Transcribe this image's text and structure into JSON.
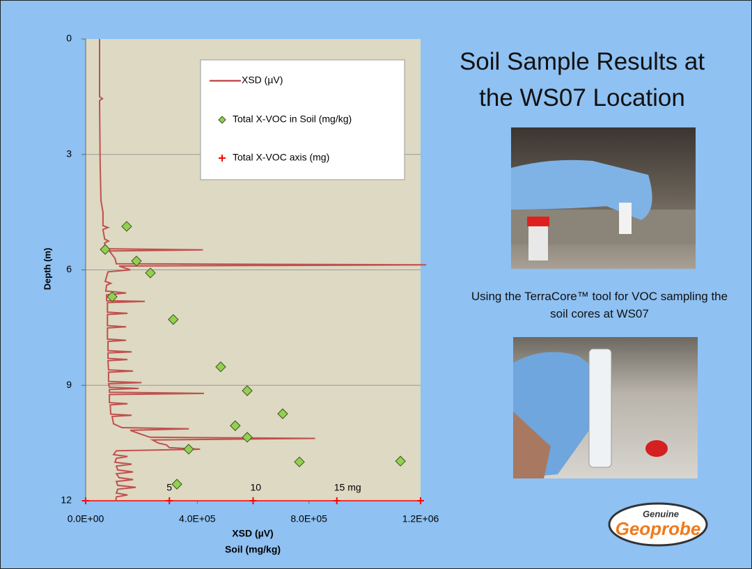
{
  "slide": {
    "title": "Soil Sample Results at the WS07 Location",
    "caption": "Using the TerraCore™ tool for VOC sampling the soil cores at WS07",
    "logo": {
      "top": "Genuine",
      "main": "Geoprobe"
    }
  },
  "chart_data": {
    "type": "line",
    "xlabel": "XSD (µV)",
    "xlabel2": "Soil (mg/kg)",
    "ylabel": "Depth (m)",
    "xlim": [
      0,
      1200000
    ],
    "xticks": [
      {
        "value": 0,
        "label": "0.0E+00"
      },
      {
        "value": 400000,
        "label": "4.0E+05"
      },
      {
        "value": 800000,
        "label": "8.0E+05"
      },
      {
        "value": 1200000,
        "label": "1.2E+06"
      }
    ],
    "ylim": [
      0,
      12
    ],
    "yticks": [
      0,
      3,
      6,
      9,
      12
    ],
    "y_inverted": true,
    "grid": true,
    "x2": {
      "name": "Total X-VOC axis (mg)",
      "color": "#ff0000",
      "lim": [
        0,
        20
      ],
      "ticks": [
        5,
        10,
        {
          "value": 15,
          "label": "15 mg"
        }
      ]
    },
    "series": [
      {
        "name": "XSD (µV)",
        "type": "line",
        "color": "#c0504d",
        "x": [
          50000,
          50000,
          60000,
          50000,
          52000,
          55000,
          62000,
          62000,
          80000,
          62000,
          68000,
          82000,
          68000,
          70000,
          420000,
          85000,
          105000,
          110000,
          1220000,
          120000,
          160000,
          80000,
          70000,
          90000,
          75000,
          72000,
          145000,
          75000,
          75000,
          212000,
          78000,
          78000,
          150000,
          78000,
          78000,
          145000,
          78000,
          78000,
          145000,
          80000,
          80000,
          165000,
          80000,
          80000,
          150000,
          80000,
          82000,
          170000,
          82000,
          82000,
          200000,
          82000,
          85000,
          190000,
          85000,
          85000,
          424000,
          85000,
          85000,
          150000,
          88000,
          90000,
          165000,
          95000,
          100000,
          130000,
          370000,
          160000,
          190000,
          230000,
          822000,
          240000,
          260000,
          290000,
          300000,
          410000,
          110000,
          100000,
          150000,
          110000,
          105000,
          165000,
          110000,
          115000,
          170000,
          110000,
          120000,
          170000,
          110000,
          115000,
          180000,
          115000,
          110000,
          150000,
          110000,
          108000
        ],
        "y": [
          0,
          1.5,
          1.55,
          1.6,
          3.2,
          4.2,
          4.5,
          4.85,
          4.9,
          4.95,
          5.2,
          5.25,
          5.3,
          5.45,
          5.48,
          5.51,
          5.7,
          5.84,
          5.87,
          5.9,
          6.0,
          6.05,
          6.3,
          6.35,
          6.4,
          6.55,
          6.6,
          6.65,
          6.8,
          6.82,
          6.85,
          7.1,
          7.13,
          7.16,
          7.45,
          7.48,
          7.51,
          7.8,
          7.83,
          7.86,
          8.1,
          8.13,
          8.16,
          8.3,
          8.33,
          8.36,
          8.6,
          8.63,
          8.66,
          8.9,
          8.93,
          8.96,
          9.05,
          9.08,
          9.11,
          9.18,
          9.21,
          9.24,
          9.45,
          9.48,
          9.51,
          9.75,
          9.78,
          9.81,
          10.0,
          10.1,
          10.13,
          10.17,
          10.25,
          10.35,
          10.38,
          10.42,
          10.5,
          10.55,
          10.62,
          10.66,
          10.7,
          10.8,
          10.85,
          10.9,
          11.0,
          11.05,
          11.1,
          11.2,
          11.25,
          11.3,
          11.4,
          11.45,
          11.5,
          11.6,
          11.65,
          11.7,
          11.8,
          11.85,
          11.9,
          12
        ]
      },
      {
        "name": "Total X-VOC in Soil (mg/kg)",
        "type": "scatter",
        "color": "#92d050",
        "x": [
          147000,
          70000,
          182000,
          232000,
          95000,
          314000,
          484000,
          579000,
          706000,
          536000,
          579000,
          369000,
          766000,
          1128000,
          327000
        ],
        "y": [
          4.87,
          5.47,
          5.77,
          6.08,
          6.7,
          7.29,
          8.52,
          9.14,
          9.74,
          10.05,
          10.35,
          10.66,
          10.99,
          10.97,
          11.57
        ]
      }
    ]
  }
}
